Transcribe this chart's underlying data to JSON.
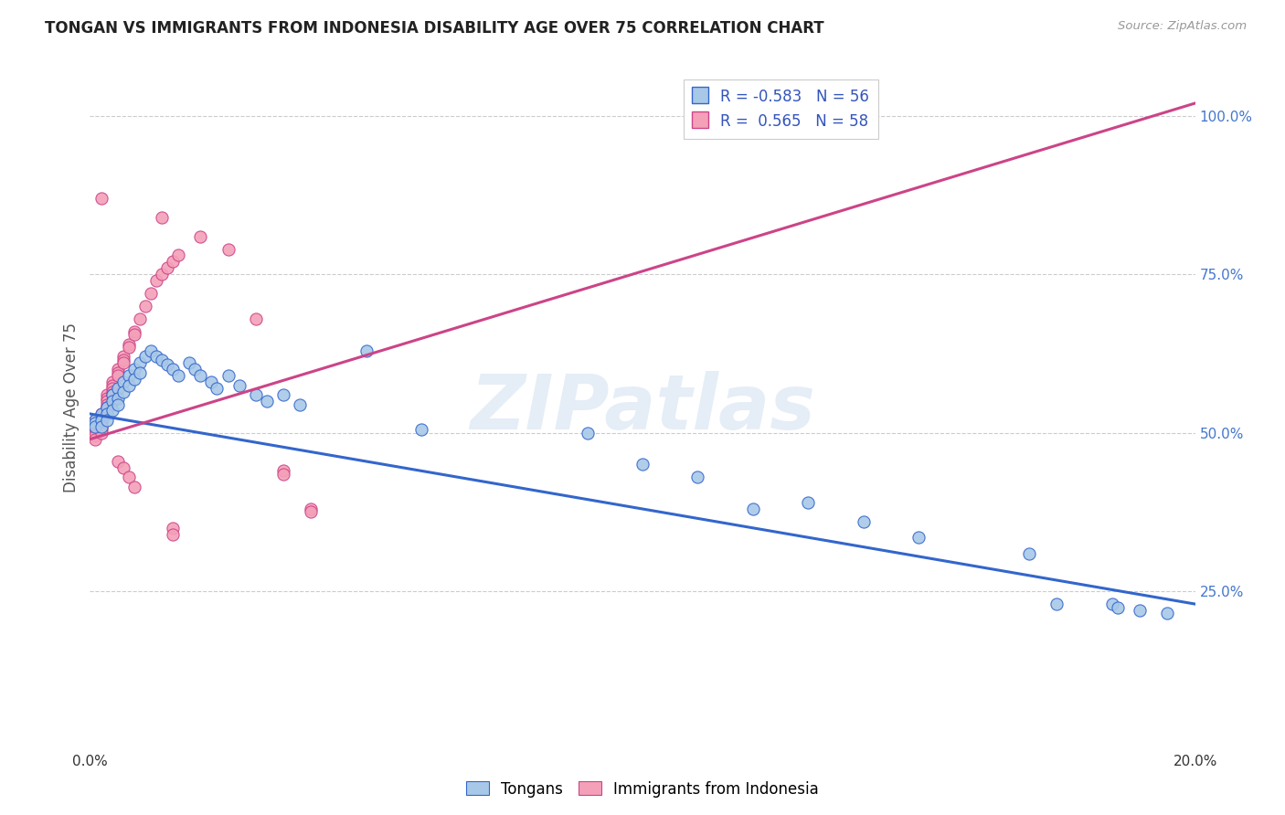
{
  "title": "TONGAN VS IMMIGRANTS FROM INDONESIA DISABILITY AGE OVER 75 CORRELATION CHART",
  "source": "Source: ZipAtlas.com",
  "ylabel": "Disability Age Over 75",
  "xmin": 0.0,
  "xmax": 0.2,
  "ymin": 0.0,
  "ymax": 1.08,
  "legend_blue_R": "-0.583",
  "legend_blue_N": "56",
  "legend_pink_R": "0.565",
  "legend_pink_N": "58",
  "blue_color": "#a8c8e8",
  "pink_color": "#f4a0b8",
  "line_blue": "#3366cc",
  "line_pink": "#cc4488",
  "watermark_text": "ZIPatlas",
  "blue_points": [
    [
      0.001,
      0.52
    ],
    [
      0.001,
      0.515
    ],
    [
      0.001,
      0.51
    ],
    [
      0.002,
      0.53
    ],
    [
      0.002,
      0.52
    ],
    [
      0.002,
      0.51
    ],
    [
      0.003,
      0.54
    ],
    [
      0.003,
      0.53
    ],
    [
      0.003,
      0.52
    ],
    [
      0.004,
      0.56
    ],
    [
      0.004,
      0.55
    ],
    [
      0.004,
      0.535
    ],
    [
      0.005,
      0.57
    ],
    [
      0.005,
      0.555
    ],
    [
      0.005,
      0.545
    ],
    [
      0.006,
      0.58
    ],
    [
      0.006,
      0.565
    ],
    [
      0.007,
      0.59
    ],
    [
      0.007,
      0.575
    ],
    [
      0.008,
      0.6
    ],
    [
      0.008,
      0.585
    ],
    [
      0.009,
      0.61
    ],
    [
      0.009,
      0.595
    ],
    [
      0.01,
      0.62
    ],
    [
      0.011,
      0.63
    ],
    [
      0.012,
      0.62
    ],
    [
      0.013,
      0.615
    ],
    [
      0.014,
      0.608
    ],
    [
      0.015,
      0.6
    ],
    [
      0.016,
      0.59
    ],
    [
      0.018,
      0.61
    ],
    [
      0.019,
      0.6
    ],
    [
      0.02,
      0.59
    ],
    [
      0.022,
      0.58
    ],
    [
      0.023,
      0.57
    ],
    [
      0.025,
      0.59
    ],
    [
      0.027,
      0.575
    ],
    [
      0.03,
      0.56
    ],
    [
      0.032,
      0.55
    ],
    [
      0.035,
      0.56
    ],
    [
      0.038,
      0.545
    ],
    [
      0.05,
      0.63
    ],
    [
      0.06,
      0.505
    ],
    [
      0.09,
      0.5
    ],
    [
      0.1,
      0.45
    ],
    [
      0.11,
      0.43
    ],
    [
      0.12,
      0.38
    ],
    [
      0.13,
      0.39
    ],
    [
      0.14,
      0.36
    ],
    [
      0.15,
      0.335
    ],
    [
      0.17,
      0.31
    ],
    [
      0.175,
      0.23
    ],
    [
      0.185,
      0.23
    ],
    [
      0.186,
      0.225
    ],
    [
      0.19,
      0.22
    ],
    [
      0.195,
      0.215
    ]
  ],
  "pink_points": [
    [
      0.001,
      0.52
    ],
    [
      0.001,
      0.515
    ],
    [
      0.001,
      0.51
    ],
    [
      0.001,
      0.505
    ],
    [
      0.001,
      0.5
    ],
    [
      0.001,
      0.495
    ],
    [
      0.001,
      0.49
    ],
    [
      0.002,
      0.53
    ],
    [
      0.002,
      0.525
    ],
    [
      0.002,
      0.52
    ],
    [
      0.002,
      0.515
    ],
    [
      0.002,
      0.51
    ],
    [
      0.002,
      0.505
    ],
    [
      0.002,
      0.5
    ],
    [
      0.003,
      0.56
    ],
    [
      0.003,
      0.555
    ],
    [
      0.003,
      0.55
    ],
    [
      0.003,
      0.545
    ],
    [
      0.003,
      0.54
    ],
    [
      0.003,
      0.535
    ],
    [
      0.004,
      0.58
    ],
    [
      0.004,
      0.575
    ],
    [
      0.004,
      0.57
    ],
    [
      0.004,
      0.565
    ],
    [
      0.004,
      0.56
    ],
    [
      0.005,
      0.6
    ],
    [
      0.005,
      0.595
    ],
    [
      0.005,
      0.59
    ],
    [
      0.006,
      0.62
    ],
    [
      0.006,
      0.615
    ],
    [
      0.006,
      0.61
    ],
    [
      0.007,
      0.64
    ],
    [
      0.007,
      0.635
    ],
    [
      0.008,
      0.66
    ],
    [
      0.008,
      0.655
    ],
    [
      0.009,
      0.68
    ],
    [
      0.01,
      0.7
    ],
    [
      0.011,
      0.72
    ],
    [
      0.012,
      0.74
    ],
    [
      0.013,
      0.75
    ],
    [
      0.014,
      0.76
    ],
    [
      0.015,
      0.77
    ],
    [
      0.016,
      0.78
    ],
    [
      0.002,
      0.87
    ],
    [
      0.013,
      0.84
    ],
    [
      0.02,
      0.81
    ],
    [
      0.025,
      0.79
    ],
    [
      0.03,
      0.68
    ],
    [
      0.035,
      0.44
    ],
    [
      0.035,
      0.435
    ],
    [
      0.04,
      0.38
    ],
    [
      0.04,
      0.375
    ],
    [
      0.005,
      0.455
    ],
    [
      0.006,
      0.445
    ],
    [
      0.007,
      0.43
    ],
    [
      0.008,
      0.415
    ],
    [
      0.015,
      0.35
    ],
    [
      0.015,
      0.34
    ]
  ],
  "blue_line_pts": [
    [
      0.0,
      0.53
    ],
    [
      0.2,
      0.23
    ]
  ],
  "pink_line_pts": [
    [
      0.0,
      0.49
    ],
    [
      0.2,
      1.02
    ]
  ]
}
